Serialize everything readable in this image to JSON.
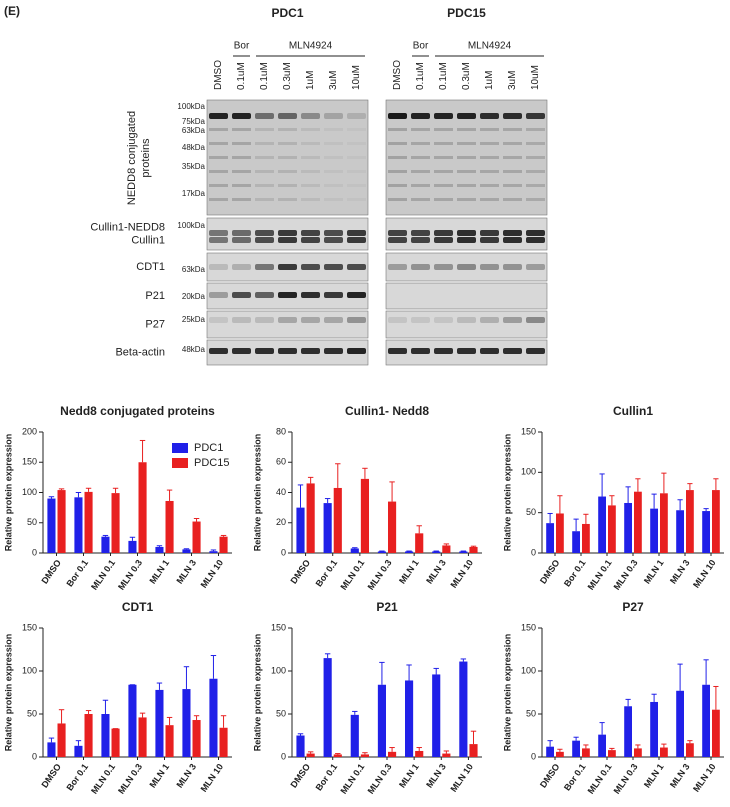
{
  "figure_label": "(E)",
  "blot": {
    "panels": [
      {
        "title": "PDC1",
        "treatments": [
          "Bor",
          "MLN4924"
        ],
        "lanes": [
          "DMSO",
          "0.1uM",
          "0.1uM",
          "0.3uM",
          "1uM",
          "3uM",
          "10uM"
        ]
      },
      {
        "title": "PDC15",
        "treatments": [
          "Bor",
          "MLN4924"
        ],
        "lanes": [
          "DMSO",
          "0.1uM",
          "0.1uM",
          "0.3uM",
          "1uM",
          "3uM",
          "10uM"
        ]
      }
    ],
    "rows": [
      {
        "label": [
          "NEDD8 conjugated",
          "proteins"
        ],
        "markers": [
          "100kDa",
          "75kDa",
          "63kDa",
          "48kDa",
          "35kDa",
          "17kDa"
        ]
      },
      {
        "label": [
          "Cullin1-NEDD8",
          "Cullin1"
        ],
        "markers": [
          "100kDa"
        ]
      },
      {
        "label": [
          "CDT1"
        ],
        "markers": [
          "63kDa"
        ]
      },
      {
        "label": [
          "P21"
        ],
        "markers": [
          "20kDa"
        ]
      },
      {
        "label": [
          "P27"
        ],
        "markers": [
          "25kDa"
        ]
      },
      {
        "label": [
          "Beta-actin"
        ],
        "markers": [
          "48kDa"
        ]
      }
    ]
  },
  "chart_data": [
    {
      "type": "bar",
      "title": "Nedd8 conjugated proteins",
      "ylabel": "Relative protein expression",
      "categories": [
        "DMSO",
        "Bor 0.1",
        "MLN 0.1",
        "MLN 0.3",
        "MLN 1",
        "MLN 3",
        "MLN 10"
      ],
      "series": [
        {
          "name": "PDC1",
          "color": "#2020e8",
          "values": [
            90,
            92,
            27,
            20,
            10,
            6,
            3
          ],
          "errors": [
            3,
            8,
            2,
            6,
            2,
            1,
            2
          ]
        },
        {
          "name": "PDC15",
          "color": "#e82020",
          "values": [
            104,
            101,
            99,
            150,
            86,
            52,
            27
          ],
          "errors": [
            2,
            6,
            8,
            36,
            18,
            5,
            2
          ]
        }
      ],
      "ylim": [
        0,
        200
      ],
      "yticks": [
        0,
        50,
        100,
        150,
        200
      ],
      "legend": "upper right"
    },
    {
      "type": "bar",
      "title": "Cullin1- Nedd8",
      "ylabel": "Relative protein expression",
      "categories": [
        "DMSO",
        "Bor 0.1",
        "MLN 0.1",
        "MLN 0.3",
        "MLN 1",
        "MLN 3",
        "MLN 10"
      ],
      "series": [
        {
          "color": "#2020e8",
          "values": [
            30,
            33,
            3,
            1,
            1,
            1,
            1
          ],
          "errors": [
            15,
            3,
            0.5,
            0.3,
            0.3,
            0.3,
            0.3
          ]
        },
        {
          "color": "#e82020",
          "values": [
            46,
            43,
            49,
            34,
            13,
            5,
            4
          ],
          "errors": [
            4,
            16,
            7,
            13,
            5,
            1,
            0.5
          ]
        }
      ],
      "ylim": [
        0,
        80
      ],
      "yticks": [
        0,
        20,
        40,
        60,
        80
      ]
    },
    {
      "type": "bar",
      "title": "Cullin1",
      "ylabel": "Relative protein expression",
      "categories": [
        "DMSO",
        "Bor 0.1",
        "MLN 0.1",
        "MLN 0.3",
        "MLN 1",
        "MLN 3",
        "MLN 10"
      ],
      "series": [
        {
          "color": "#2020e8",
          "values": [
            37,
            27,
            70,
            62,
            55,
            53,
            52
          ],
          "errors": [
            12,
            15,
            28,
            20,
            18,
            13,
            3
          ]
        },
        {
          "color": "#e82020",
          "values": [
            49,
            36,
            59,
            76,
            74,
            78,
            78
          ],
          "errors": [
            22,
            12,
            12,
            16,
            25,
            8,
            14
          ]
        }
      ],
      "ylim": [
        0,
        150
      ],
      "yticks": [
        0,
        50,
        100,
        150
      ]
    },
    {
      "type": "bar",
      "title": "CDT1",
      "ylabel": "Relative protein expression",
      "categories": [
        "DMSO",
        "Bor 0.1",
        "MLN 0.1",
        "MLN 0.3",
        "MLN 1",
        "MLN 3",
        "MLN 10"
      ],
      "series": [
        {
          "color": "#2020e8",
          "values": [
            17,
            13,
            50,
            84,
            78,
            79,
            91
          ],
          "errors": [
            5,
            6,
            16,
            0,
            8,
            26,
            27
          ]
        },
        {
          "color": "#e82020",
          "values": [
            39,
            50,
            33,
            46,
            37,
            43,
            34
          ],
          "errors": [
            16,
            4,
            0,
            5,
            9,
            5,
            14
          ]
        }
      ],
      "ylim": [
        0,
        150
      ],
      "yticks": [
        0,
        50,
        100,
        150
      ]
    },
    {
      "type": "bar",
      "title": "P21",
      "ylabel": "Relative protein expression",
      "categories": [
        "DMSO",
        "Bor 0.1",
        "MLN 0.1",
        "MLN 0.3",
        "MLN 1",
        "MLN 3",
        "MLN 10"
      ],
      "series": [
        {
          "color": "#2020e8",
          "values": [
            25,
            115,
            49,
            84,
            89,
            96,
            111
          ],
          "errors": [
            2,
            5,
            4,
            26,
            18,
            7,
            3
          ]
        },
        {
          "color": "#e82020",
          "values": [
            4,
            3,
            3,
            6,
            7,
            4,
            15
          ],
          "errors": [
            2,
            1,
            2,
            5,
            4,
            3,
            15
          ]
        }
      ],
      "ylim": [
        0,
        150
      ],
      "yticks": [
        0,
        50,
        100,
        150
      ]
    },
    {
      "type": "bar",
      "title": "P27",
      "ylabel": "Relative protein expression",
      "categories": [
        "DMSO",
        "Bor 0.1",
        "MLN 0.1",
        "MLN 0.3",
        "MLN 1",
        "MLN 3",
        "MLN 10"
      ],
      "series": [
        {
          "color": "#2020e8",
          "values": [
            12,
            19,
            26,
            59,
            64,
            77,
            84
          ],
          "errors": [
            7,
            4,
            14,
            8,
            9,
            31,
            29
          ]
        },
        {
          "color": "#e82020",
          "values": [
            6,
            10,
            8,
            10,
            11,
            16,
            55
          ],
          "errors": [
            3,
            4,
            2,
            4,
            4,
            3,
            27
          ]
        }
      ],
      "ylim": [
        0,
        150
      ],
      "yticks": [
        0,
        50,
        100,
        150
      ]
    }
  ]
}
